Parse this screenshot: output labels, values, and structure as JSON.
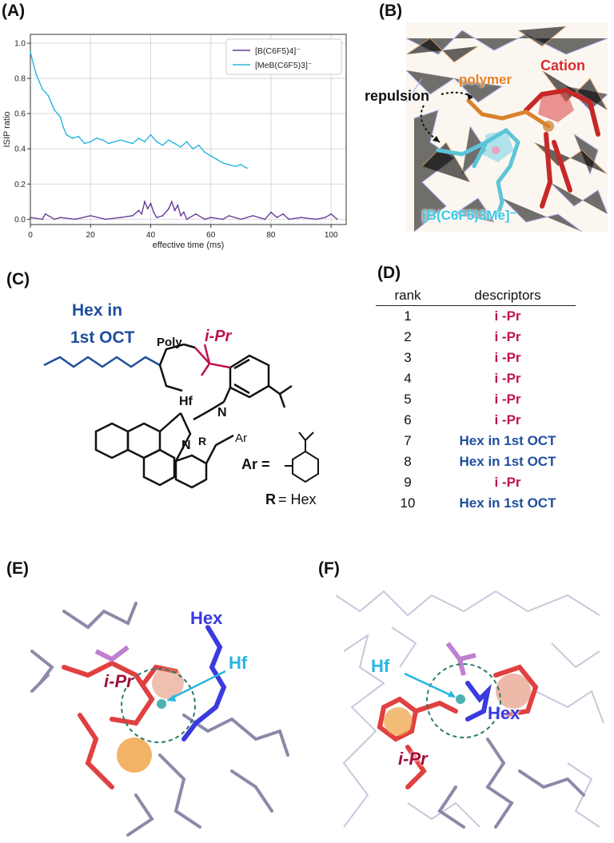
{
  "panels": {
    "a": "(A)",
    "b": "(B)",
    "c": "(C)",
    "d": "(D)",
    "e": "(E)",
    "f": "(F)"
  },
  "colors": {
    "series1": "#6a3d9a",
    "series2": "#29b6e0",
    "ipr": "#c0134a",
    "hex": "#1f4e9c",
    "cation": "#d92b2b",
    "polymer": "#e67e22",
    "anion": "#3cc8e8"
  },
  "chart_data": {
    "type": "line",
    "xlabel": "effective time (ms)",
    "ylabel": "ISIP ratio",
    "xlim": [
      0,
      105
    ],
    "ylim": [
      -0.03,
      1.05
    ],
    "xticks": [
      0,
      20,
      40,
      60,
      80,
      100
    ],
    "yticks": [
      0.0,
      0.2,
      0.4,
      0.6,
      0.8,
      1.0
    ],
    "grid": true,
    "legend_position": "top-right",
    "series": [
      {
        "name": "[B(C6F5)4]⁻",
        "x": [
          0,
          4,
          5,
          8,
          10,
          15,
          20,
          25,
          30,
          34,
          36,
          37,
          38,
          39,
          40,
          41,
          42,
          44,
          46,
          47,
          48,
          49,
          50,
          51,
          52,
          55,
          58,
          60,
          64,
          66,
          70,
          74,
          78,
          80,
          82,
          84,
          86,
          90,
          95,
          98,
          100,
          102
        ],
        "values": [
          0.01,
          0.0,
          0.03,
          0.0,
          0.01,
          0.0,
          0.02,
          0.0,
          0.01,
          0.02,
          0.05,
          0.03,
          0.1,
          0.06,
          0.09,
          0.04,
          0.01,
          0.02,
          0.06,
          0.1,
          0.05,
          0.08,
          0.02,
          0.04,
          0.0,
          0.03,
          0.0,
          0.01,
          0.0,
          0.02,
          0.0,
          0.02,
          0.0,
          0.04,
          0.01,
          0.03,
          0.0,
          0.01,
          0.0,
          0.01,
          0.03,
          0.0
        ]
      },
      {
        "name": "[MeB(C6F5)3]⁻",
        "x": [
          0,
          1,
          2,
          3,
          4,
          5,
          6,
          7,
          8,
          9,
          10,
          11,
          12,
          14,
          16,
          18,
          20,
          22,
          24,
          26,
          28,
          30,
          32,
          34,
          36,
          38,
          40,
          42,
          44,
          46,
          48,
          50,
          52,
          54,
          56,
          58,
          60,
          62,
          64,
          66,
          68,
          70,
          72
        ],
        "values": [
          0.95,
          0.88,
          0.82,
          0.78,
          0.74,
          0.72,
          0.7,
          0.66,
          0.62,
          0.6,
          0.58,
          0.52,
          0.48,
          0.46,
          0.47,
          0.43,
          0.44,
          0.46,
          0.45,
          0.43,
          0.44,
          0.45,
          0.44,
          0.43,
          0.46,
          0.44,
          0.48,
          0.44,
          0.42,
          0.45,
          0.43,
          0.41,
          0.44,
          0.4,
          0.42,
          0.38,
          0.36,
          0.34,
          0.32,
          0.31,
          0.3,
          0.31,
          0.29
        ]
      }
    ]
  },
  "panel_b": {
    "cation": "Cation",
    "polymer": "polymer",
    "repulsion": "repulsion",
    "anion": "[B(C6F5)3Me]⁻"
  },
  "panel_c": {
    "hex1": "Hex in",
    "hex2": "1st OCT",
    "ipr": "i-Pr",
    "poly": "Poly",
    "hf": "Hf",
    "n1": "N",
    "n2": "N",
    "r": "R",
    "ar": "Ar",
    "ar_def": "Ar =",
    "r_def_bold": "R",
    "r_def_rest": "= Hex"
  },
  "panel_d": {
    "header_rank": "rank",
    "header_desc": "descriptors",
    "rows": [
      {
        "rank": "1",
        "desc": "i -Pr",
        "kind": "ipr"
      },
      {
        "rank": "2",
        "desc": "i -Pr",
        "kind": "ipr"
      },
      {
        "rank": "3",
        "desc": "i -Pr",
        "kind": "ipr"
      },
      {
        "rank": "4",
        "desc": "i -Pr",
        "kind": "ipr"
      },
      {
        "rank": "5",
        "desc": "i -Pr",
        "kind": "ipr"
      },
      {
        "rank": "6",
        "desc": "i -Pr",
        "kind": "ipr"
      },
      {
        "rank": "7",
        "desc": "Hex in 1st OCT",
        "kind": "hex"
      },
      {
        "rank": "8",
        "desc": "Hex in 1st OCT",
        "kind": "hex"
      },
      {
        "rank": "9",
        "desc": "i -Pr",
        "kind": "ipr"
      },
      {
        "rank": "10",
        "desc": "Hex in 1st OCT",
        "kind": "hex"
      }
    ]
  },
  "panel_e": {
    "hex": "Hex",
    "hf": "Hf",
    "ipr": "i-Pr"
  },
  "panel_f": {
    "hex": "Hex",
    "hf": "Hf",
    "ipr": "i-Pr"
  }
}
